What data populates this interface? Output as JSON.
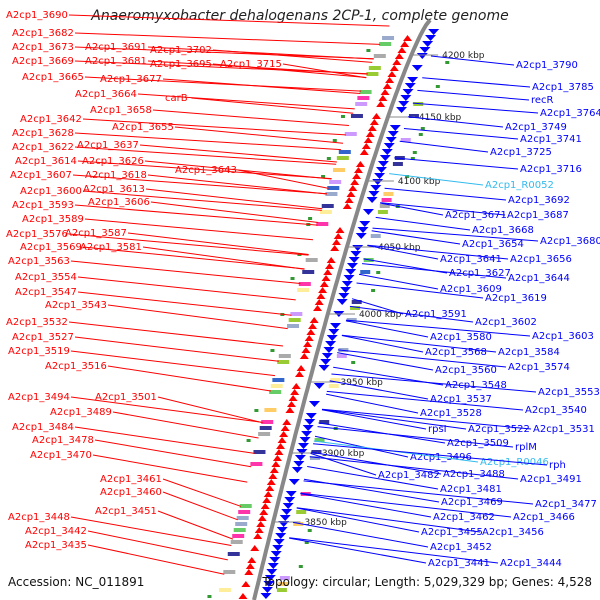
{
  "title": "Anaeromyxobacter dehalogenans 2CP-1, complete genome",
  "accession": "Accession: NC_011891",
  "stats": "Topology: circular; Length: 5,029,329 bp; Genes: 4,528",
  "colors": {
    "forward": "#ff0000",
    "reverse": "#0000ff",
    "rna": "#33bbee",
    "backbone": "#888888"
  },
  "scale_labels": [
    {
      "text": "4200 kbp"
    },
    {
      "text": "4150 kbp"
    },
    {
      "text": "4100 kbp"
    },
    {
      "text": "4050 kbp"
    },
    {
      "text": "4000 kbp"
    },
    {
      "text": "3950 kbp"
    },
    {
      "text": "3900 kbp"
    },
    {
      "text": "3850 kbp"
    }
  ],
  "left_labels": [
    {
      "text": "A2cp1_3690"
    },
    {
      "text": "A2cp1_3682"
    },
    {
      "text": "A2cp1_3673"
    },
    {
      "text": "A2cp1_3691"
    },
    {
      "text": "A2cp1_3702"
    },
    {
      "text": "A2cp1_3669"
    },
    {
      "text": "A2cp1_3681"
    },
    {
      "text": "A2cp1_3695"
    },
    {
      "text": "A2cp1_3715"
    },
    {
      "text": "A2cp1_3665"
    },
    {
      "text": "A2cp1_3677"
    },
    {
      "text": "A2cp1_3664"
    },
    {
      "text": "carB"
    },
    {
      "text": "A2cp1_3658"
    },
    {
      "text": "A2cp1_3642"
    },
    {
      "text": "A2cp1_3655"
    },
    {
      "text": "A2cp1_3628"
    },
    {
      "text": "A2cp1_3637"
    },
    {
      "text": "A2cp1_3622"
    },
    {
      "text": "A2cp1_3614"
    },
    {
      "text": "A2cp1_3626"
    },
    {
      "text": "A2cp1_3643"
    },
    {
      "text": "A2cp1_3607"
    },
    {
      "text": "A2cp1_3618"
    },
    {
      "text": "A2cp1_3600"
    },
    {
      "text": "A2cp1_3613"
    },
    {
      "text": "A2cp1_3593"
    },
    {
      "text": "A2cp1_3606"
    },
    {
      "text": "A2cp1_3589"
    },
    {
      "text": "A2cp1_3576"
    },
    {
      "text": "A2cp1_3587"
    },
    {
      "text": "A2cp1_3569"
    },
    {
      "text": "A2cp1_3581"
    },
    {
      "text": "A2cp1_3563"
    },
    {
      "text": "A2cp1_3554"
    },
    {
      "text": "A2cp1_3547"
    },
    {
      "text": "A2cp1_3543"
    },
    {
      "text": "A2cp1_3532"
    },
    {
      "text": "A2cp1_3527"
    },
    {
      "text": "A2cp1_3519"
    },
    {
      "text": "A2cp1_3516"
    },
    {
      "text": "A2cp1_3494"
    },
    {
      "text": "A2cp1_3501"
    },
    {
      "text": "A2cp1_3489"
    },
    {
      "text": "A2cp1_3484"
    },
    {
      "text": "A2cp1_3478"
    },
    {
      "text": "A2cp1_3470"
    },
    {
      "text": "A2cp1_3461"
    },
    {
      "text": "A2cp1_3460"
    },
    {
      "text": "A2cp1_3451"
    },
    {
      "text": "A2cp1_3448"
    },
    {
      "text": "A2cp1_3442"
    },
    {
      "text": "A2cp1_3435"
    }
  ],
  "right_labels": [
    {
      "text": "A2cp1_3790"
    },
    {
      "text": "A2cp1_3785"
    },
    {
      "text": "recR"
    },
    {
      "text": "A2cp1_3764"
    },
    {
      "text": "A2cp1_3749"
    },
    {
      "text": "A2cp1_3741"
    },
    {
      "text": "A2cp1_3725"
    },
    {
      "text": "A2cp1_3716"
    },
    {
      "text": "A2cp1_R0052",
      "rna": true
    },
    {
      "text": "A2cp1_3692"
    },
    {
      "text": "A2cp1_3671"
    },
    {
      "text": "A2cp1_3687"
    },
    {
      "text": "A2cp1_3668"
    },
    {
      "text": "A2cp1_3680"
    },
    {
      "text": "A2cp1_3654"
    },
    {
      "text": "A2cp1_3641"
    },
    {
      "text": "A2cp1_3656"
    },
    {
      "text": "A2cp1_3627"
    },
    {
      "text": "A2cp1_3644"
    },
    {
      "text": "A2cp1_3609"
    },
    {
      "text": "A2cp1_3619"
    },
    {
      "text": "A2cp1_3591"
    },
    {
      "text": "A2cp1_3602"
    },
    {
      "text": "A2cp1_3603"
    },
    {
      "text": "A2cp1_3580"
    },
    {
      "text": "A2cp1_3568"
    },
    {
      "text": "A2cp1_3584"
    },
    {
      "text": "A2cp1_3574"
    },
    {
      "text": "A2cp1_3560"
    },
    {
      "text": "A2cp1_3548"
    },
    {
      "text": "A2cp1_3553"
    },
    {
      "text": "A2cp1_3537"
    },
    {
      "text": "A2cp1_3540"
    },
    {
      "text": "A2cp1_3528"
    },
    {
      "text": "rpsI"
    },
    {
      "text": "A2cp1_3522"
    },
    {
      "text": "A2cp1_3531"
    },
    {
      "text": "A2cp1_3509"
    },
    {
      "text": "rplM"
    },
    {
      "text": "A2cp1_3496"
    },
    {
      "text": "A2cp1_R0046",
      "rna": true
    },
    {
      "text": "rph"
    },
    {
      "text": "A2cp1_3482"
    },
    {
      "text": "A2cp1_3488"
    },
    {
      "text": "A2cp1_3491"
    },
    {
      "text": "A2cp1_3481"
    },
    {
      "text": "A2cp1_3469"
    },
    {
      "text": "A2cp1_3477"
    },
    {
      "text": "A2cp1_3462"
    },
    {
      "text": "A2cp1_3466"
    },
    {
      "text": "A2cp1_3455"
    },
    {
      "text": "A2cp1_3456"
    },
    {
      "text": "A2cp1_3452"
    },
    {
      "text": "A2cp1_3441"
    },
    {
      "text": "A2cp1_3444"
    }
  ]
}
